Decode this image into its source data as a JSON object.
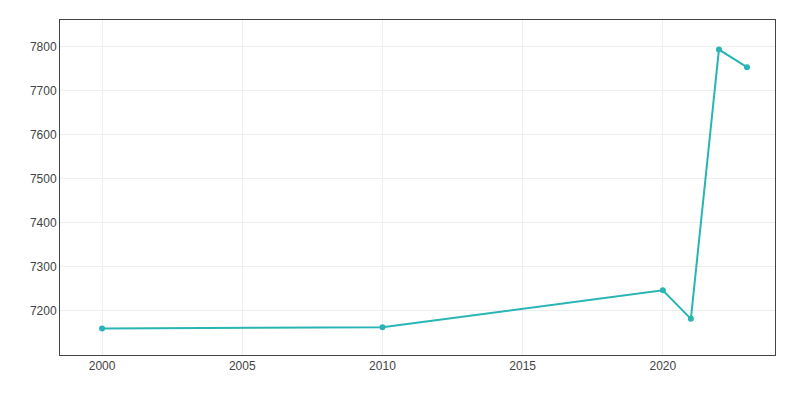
{
  "chart_data": {
    "type": "line",
    "x": [
      2000,
      2010,
      2020,
      2021,
      2022,
      2023
    ],
    "values": [
      7160,
      7163,
      7247,
      7182,
      7793,
      7753
    ],
    "color": "#2ab5b5",
    "marker": "circle",
    "xlim": [
      1998.5,
      2024.0
    ],
    "xticks": [
      2000,
      2005,
      2010,
      2015,
      2020
    ],
    "ylim": [
      7100,
      7860
    ],
    "yticks": [
      7200,
      7300,
      7400,
      7500,
      7600,
      7700,
      7800
    ],
    "grid": true
  }
}
